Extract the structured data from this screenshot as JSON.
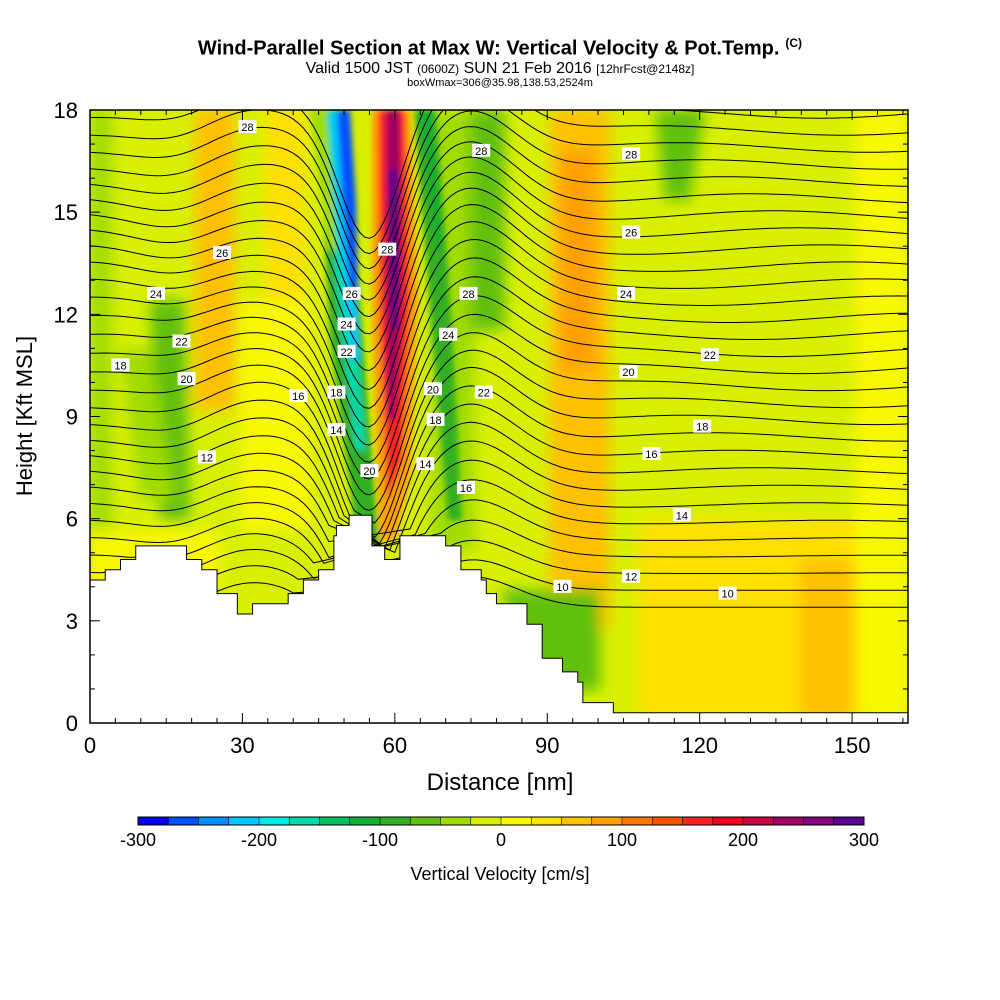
{
  "header": {
    "title": "Wind-Parallel Section at Max W: Vertical Velocity & Pot.Temp.",
    "title_tag": "(C)",
    "subtitle_a": "Valid 1500 JST",
    "subtitle_b": "(0600Z)",
    "subtitle_c": "SUN 21 Feb 2016",
    "subtitle_d": "[12hrFcst@2148z]",
    "subtitle2": "boxWmax=306@35.98,138.53,2524m"
  },
  "chart_data": {
    "type": "heatmap",
    "xlabel": "Distance [nm]",
    "ylabel": "Height [Kft MSL]",
    "xlim": [
      0,
      161
    ],
    "ylim": [
      0,
      18
    ],
    "xticks": [
      0,
      30,
      60,
      90,
      120,
      150
    ],
    "yticks": [
      0,
      3,
      6,
      9,
      12,
      15,
      18
    ],
    "colorbar": {
      "label": "Vertical Velocity [cm/s]",
      "range": [
        -300,
        300
      ],
      "ticks": [
        -300,
        -200,
        -100,
        0,
        100,
        200,
        300
      ],
      "colors": [
        "#0000ee",
        "#0050ff",
        "#0090ff",
        "#00c8ff",
        "#00e8e8",
        "#00d8a8",
        "#00c060",
        "#10b030",
        "#30b020",
        "#60c010",
        "#a0dc00",
        "#d8f000",
        "#f8f800",
        "#ffe000",
        "#ffc000",
        "#ffa000",
        "#ff7800",
        "#ff5000",
        "#ff2020",
        "#ee0020",
        "#c80040",
        "#a00060",
        "#800080",
        "#5a0090"
      ]
    },
    "terrain_kft": [
      [
        0,
        4.2
      ],
      [
        3,
        4.2
      ],
      [
        3,
        4.5
      ],
      [
        6,
        4.5
      ],
      [
        6,
        4.8
      ],
      [
        9,
        4.8
      ],
      [
        9,
        5.2
      ],
      [
        19,
        5.2
      ],
      [
        19,
        4.8
      ],
      [
        22,
        4.8
      ],
      [
        22,
        4.5
      ],
      [
        25,
        4.5
      ],
      [
        25,
        3.8
      ],
      [
        29,
        3.8
      ],
      [
        29,
        3.2
      ],
      [
        32,
        3.2
      ],
      [
        32,
        3.5
      ],
      [
        39,
        3.5
      ],
      [
        39,
        3.8
      ],
      [
        42,
        3.8
      ],
      [
        42,
        4.2
      ],
      [
        45,
        4.2
      ],
      [
        45,
        4.5
      ],
      [
        48,
        4.5
      ],
      [
        48,
        5.5
      ],
      [
        48.5,
        5.5
      ],
      [
        48.5,
        5.8
      ],
      [
        51,
        5.8
      ],
      [
        51,
        6.1
      ],
      [
        55.5,
        6.1
      ],
      [
        55.5,
        5.2
      ],
      [
        58,
        5.2
      ],
      [
        58,
        4.8
      ],
      [
        61,
        4.8
      ],
      [
        61,
        5.5
      ],
      [
        70,
        5.5
      ],
      [
        70,
        5.2
      ],
      [
        73,
        5.2
      ],
      [
        73,
        4.5
      ],
      [
        77,
        4.5
      ],
      [
        77,
        4.2
      ],
      [
        78,
        4.2
      ],
      [
        78,
        3.8
      ],
      [
        80,
        3.8
      ],
      [
        80,
        3.5
      ],
      [
        86,
        3.5
      ],
      [
        86,
        2.9
      ],
      [
        89,
        2.9
      ],
      [
        89,
        1.9
      ],
      [
        93,
        1.9
      ],
      [
        93,
        1.5
      ],
      [
        96,
        1.5
      ],
      [
        96,
        1.2
      ],
      [
        97,
        1.2
      ],
      [
        97,
        0.6
      ],
      [
        103,
        0.6
      ],
      [
        103,
        0.3
      ],
      [
        161,
        0.3
      ]
    ],
    "contour_labels": [
      {
        "x": 31,
        "y": 17.5,
        "label": "28"
      },
      {
        "x": 77,
        "y": 16.8,
        "label": "28"
      },
      {
        "x": 106.5,
        "y": 16.7,
        "label": "28"
      },
      {
        "x": 26,
        "y": 13.8,
        "label": "26"
      },
      {
        "x": 58.5,
        "y": 13.9,
        "label": "28"
      },
      {
        "x": 106.5,
        "y": 14.4,
        "label": "26"
      },
      {
        "x": 13,
        "y": 12.6,
        "label": "24"
      },
      {
        "x": 51.5,
        "y": 12.6,
        "label": "26"
      },
      {
        "x": 74.5,
        "y": 12.6,
        "label": "28"
      },
      {
        "x": 105.5,
        "y": 12.6,
        "label": "24"
      },
      {
        "x": 50.5,
        "y": 11.7,
        "label": "24"
      },
      {
        "x": 70.5,
        "y": 11.4,
        "label": "24"
      },
      {
        "x": 18,
        "y": 11.2,
        "label": "22"
      },
      {
        "x": 50.5,
        "y": 10.9,
        "label": "22"
      },
      {
        "x": 122,
        "y": 10.8,
        "label": "22"
      },
      {
        "x": 6,
        "y": 10.5,
        "label": "18"
      },
      {
        "x": 19,
        "y": 10.1,
        "label": "20"
      },
      {
        "x": 106,
        "y": 10.3,
        "label": "20"
      },
      {
        "x": 67.5,
        "y": 9.8,
        "label": "20"
      },
      {
        "x": 48.5,
        "y": 9.7,
        "label": "18"
      },
      {
        "x": 41,
        "y": 9.6,
        "label": "16"
      },
      {
        "x": 77.5,
        "y": 9.7,
        "label": "22"
      },
      {
        "x": 68,
        "y": 8.9,
        "label": "18"
      },
      {
        "x": 120.5,
        "y": 8.7,
        "label": "18"
      },
      {
        "x": 48.5,
        "y": 8.6,
        "label": "14"
      },
      {
        "x": 110.5,
        "y": 7.9,
        "label": "16"
      },
      {
        "x": 23,
        "y": 7.8,
        "label": "12"
      },
      {
        "x": 66,
        "y": 7.6,
        "label": "14"
      },
      {
        "x": 55,
        "y": 7.4,
        "label": "20"
      },
      {
        "x": 74,
        "y": 6.9,
        "label": "16"
      },
      {
        "x": 116.5,
        "y": 6.1,
        "label": "14"
      },
      {
        "x": 106.5,
        "y": 4.3,
        "label": "12"
      },
      {
        "x": 93,
        "y": 4.0,
        "label": "10"
      },
      {
        "x": 125.5,
        "y": 3.8,
        "label": "10"
      }
    ]
  }
}
